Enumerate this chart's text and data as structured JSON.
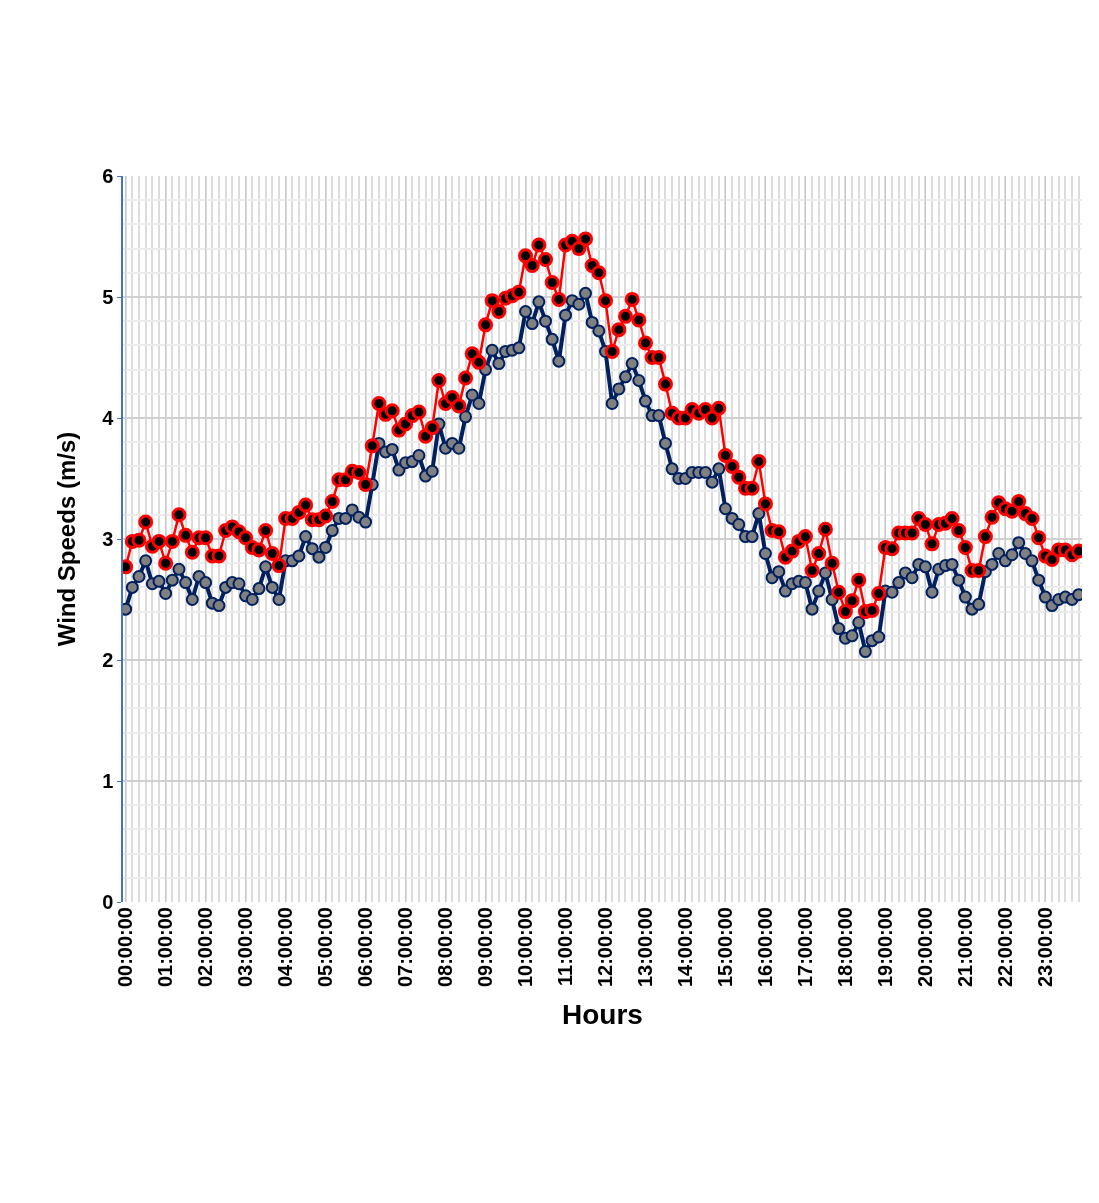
{
  "chart_data": {
    "type": "line",
    "xlabel": "Hours",
    "ylabel": "Wind Speeds (m/s)",
    "ylim": [
      0,
      6
    ],
    "yticks": [
      0,
      1,
      2,
      3,
      4,
      5,
      6
    ],
    "grid": true,
    "marker": "circle",
    "line_style": "solid",
    "categories": [
      "00:00:00",
      null,
      null,
      null,
      null,
      null,
      "01:00:00",
      null,
      null,
      null,
      null,
      null,
      "02:00:00",
      null,
      null,
      null,
      null,
      null,
      "03:00:00",
      null,
      null,
      null,
      null,
      null,
      "04:00:00",
      null,
      null,
      null,
      null,
      null,
      "05:00:00",
      null,
      null,
      null,
      null,
      null,
      "06:00:00",
      null,
      null,
      null,
      null,
      null,
      "07:00:00",
      null,
      null,
      null,
      null,
      null,
      "08:00:00",
      null,
      null,
      null,
      null,
      null,
      "09:00:00",
      null,
      null,
      null,
      null,
      null,
      "10:00:00",
      null,
      null,
      null,
      null,
      null,
      "11:00:00",
      null,
      null,
      null,
      null,
      null,
      "12:00:00",
      null,
      null,
      null,
      null,
      null,
      "13:00:00",
      null,
      null,
      null,
      null,
      null,
      "14:00:00",
      null,
      null,
      null,
      null,
      null,
      "15:00:00",
      null,
      null,
      null,
      null,
      null,
      "16:00:00",
      null,
      null,
      null,
      null,
      null,
      "17:00:00",
      null,
      null,
      null,
      null,
      null,
      "18:00:00",
      null,
      null,
      null,
      null,
      null,
      "19:00:00",
      null,
      null,
      null,
      null,
      null,
      "20:00:00",
      null,
      null,
      null,
      null,
      null,
      "21:00:00",
      null,
      null,
      null,
      null,
      null,
      "22:00:00",
      null,
      null,
      null,
      null,
      null,
      "23:00:00",
      null,
      null,
      null,
      null,
      null
    ],
    "series": [
      {
        "color": "#002060",
        "values": [
          2.42,
          2.6,
          2.69,
          2.82,
          2.63,
          2.65,
          2.55,
          2.66,
          2.75,
          2.64,
          2.5,
          2.69,
          2.64,
          2.47,
          2.45,
          2.6,
          2.64,
          2.63,
          2.53,
          2.5,
          2.59,
          2.77,
          2.6,
          2.5,
          2.82,
          2.82,
          2.86,
          3.02,
          2.92,
          2.85,
          2.93,
          3.07,
          3.17,
          3.17,
          3.24,
          3.18,
          3.14,
          3.45,
          3.79,
          3.72,
          3.74,
          3.57,
          3.63,
          3.64,
          3.69,
          3.52,
          3.56,
          3.95,
          3.75,
          3.79,
          3.75,
          4.01,
          4.19,
          4.12,
          4.4,
          4.56,
          4.45,
          4.55,
          4.56,
          4.58,
          4.88,
          4.78,
          4.96,
          4.8,
          4.65,
          4.47,
          4.85,
          4.97,
          4.94,
          5.03,
          4.79,
          4.72,
          4.55,
          4.12,
          4.24,
          4.34,
          4.45,
          4.31,
          4.14,
          4.02,
          4.02,
          3.79,
          3.58,
          3.5,
          3.5,
          3.55,
          3.55,
          3.55,
          3.47,
          3.58,
          3.25,
          3.17,
          3.12,
          3.02,
          3.02,
          3.21,
          2.88,
          2.68,
          2.73,
          2.57,
          2.63,
          2.65,
          2.64,
          2.42,
          2.57,
          2.72,
          2.5,
          2.26,
          2.18,
          2.2,
          2.31,
          2.07,
          2.16,
          2.19,
          2.57,
          2.56,
          2.64,
          2.72,
          2.68,
          2.79,
          2.77,
          2.56,
          2.75,
          2.78,
          2.79,
          2.66,
          2.52,
          2.42,
          2.46,
          2.73,
          2.79,
          2.88,
          2.82,
          2.87,
          2.97,
          2.88,
          2.82,
          2.66,
          2.52,
          2.45,
          2.5,
          2.52,
          2.5,
          2.54
        ]
      },
      {
        "color": "#ff0000",
        "values": [
          2.77,
          2.98,
          2.99,
          3.14,
          2.94,
          2.98,
          2.8,
          2.98,
          3.2,
          3.03,
          2.89,
          3.01,
          3.01,
          2.86,
          2.86,
          3.07,
          3.1,
          3.06,
          3.01,
          2.93,
          2.91,
          3.07,
          2.88,
          2.78,
          3.17,
          3.17,
          3.22,
          3.28,
          3.16,
          3.16,
          3.19,
          3.31,
          3.49,
          3.49,
          3.56,
          3.55,
          3.45,
          3.77,
          4.12,
          4.03,
          4.06,
          3.9,
          3.95,
          4.02,
          4.05,
          3.85,
          3.92,
          4.31,
          4.12,
          4.17,
          4.1,
          4.33,
          4.53,
          4.46,
          4.77,
          4.97,
          4.88,
          4.99,
          5.01,
          5.04,
          5.34,
          5.26,
          5.43,
          5.31,
          5.12,
          4.98,
          5.43,
          5.46,
          5.4,
          5.48,
          5.26,
          5.2,
          4.97,
          4.55,
          4.73,
          4.84,
          4.98,
          4.81,
          4.62,
          4.5,
          4.5,
          4.28,
          4.04,
          4.0,
          4.0,
          4.07,
          4.04,
          4.07,
          4.0,
          4.08,
          3.69,
          3.6,
          3.51,
          3.42,
          3.42,
          3.64,
          3.29,
          3.07,
          3.06,
          2.85,
          2.9,
          2.98,
          3.02,
          2.74,
          2.88,
          3.08,
          2.8,
          2.56,
          2.4,
          2.49,
          2.66,
          2.4,
          2.41,
          2.55,
          2.93,
          2.92,
          3.05,
          3.05,
          3.05,
          3.17,
          3.12,
          2.96,
          3.12,
          3.13,
          3.17,
          3.07,
          2.93,
          2.74,
          2.74,
          3.02,
          3.18,
          3.3,
          3.25,
          3.23,
          3.31,
          3.21,
          3.17,
          3.01,
          2.86,
          2.83,
          2.91,
          2.91,
          2.87,
          2.9
        ]
      }
    ]
  }
}
